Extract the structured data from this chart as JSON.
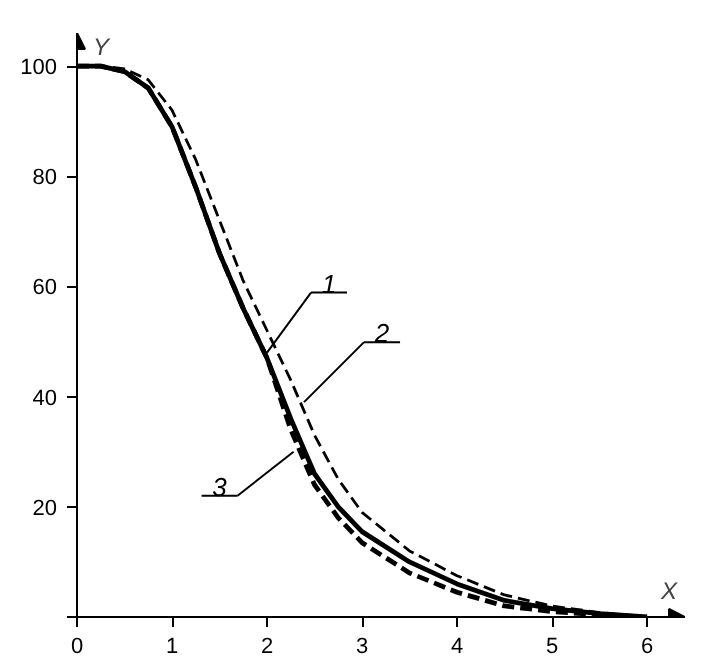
{
  "chart_data": {
    "type": "line",
    "xlabel": "X",
    "ylabel": "Y",
    "xlim": [
      0,
      6.4
    ],
    "ylim": [
      0,
      106
    ],
    "xticks": [
      0,
      1,
      2,
      3,
      4,
      5,
      6
    ],
    "yticks": [
      {
        "value": 0,
        "label": null
      },
      20,
      40,
      60,
      80,
      100
    ],
    "grid": false,
    "marker": "none",
    "series": [
      {
        "color": "#000000",
        "line_style": "solid",
        "x": [
          0,
          0.25,
          0.5,
          0.75,
          1,
          1.25,
          1.5,
          1.75,
          2,
          2.25,
          2.5,
          2.75,
          3,
          3.5,
          4,
          4.5,
          5,
          5.5,
          6
        ],
        "values": [
          100,
          100,
          99,
          96,
          89,
          78,
          66,
          56,
          47,
          36,
          26,
          20,
          15.5,
          10,
          6,
          3,
          1.5,
          0.6,
          0
        ]
      },
      {
        "color": "#000000",
        "line_style": "dashed",
        "x": [
          0,
          0.25,
          0.5,
          0.75,
          1,
          1.25,
          1.5,
          1.75,
          2,
          2.25,
          2.5,
          2.75,
          3,
          3.5,
          4,
          4.5,
          5,
          5.5,
          6
        ],
        "values": [
          100,
          100,
          99.5,
          97.5,
          92,
          83,
          72,
          61,
          52,
          43,
          33,
          25,
          19,
          12,
          7.5,
          4,
          2,
          0.8,
          0
        ]
      },
      {
        "color": "#000000",
        "line_style": "dashed",
        "x": [
          0,
          0.25,
          0.5,
          0.75,
          1,
          1.25,
          1.5,
          1.75,
          2,
          2.25,
          2.5,
          2.75,
          3,
          3.5,
          4,
          4.5,
          5,
          5.5,
          6
        ],
        "values": [
          100,
          100,
          99,
          96,
          89,
          78,
          66,
          56,
          47,
          34,
          24,
          18,
          13.5,
          8,
          4.5,
          2,
          1,
          0.4,
          0
        ]
      }
    ],
    "annotations": [
      {
        "text": "1",
        "x": 2.0,
        "y": 48
      },
      {
        "text": "2",
        "x": 2.39,
        "y": 39
      },
      {
        "text": "3",
        "x": 2.28,
        "y": 30
      }
    ]
  }
}
